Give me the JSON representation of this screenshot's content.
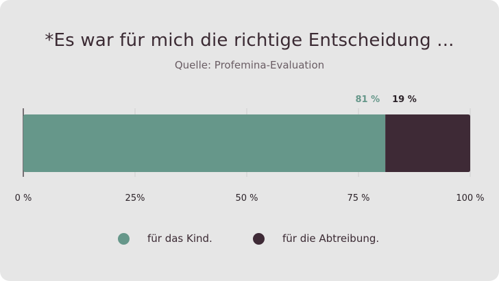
{
  "chart_data": {
    "type": "bar",
    "orientation": "horizontal-stacked",
    "title": "*Es war für mich die richtige Entscheidung ...",
    "subtitle": "Quelle: Profemina-Evaluation",
    "categories": [
      ""
    ],
    "series": [
      {
        "name": "für das Kind.",
        "values": [
          81
        ],
        "label": "81 %",
        "color": "#66978a"
      },
      {
        "name": "für die Abtreibung.",
        "values": [
          19
        ],
        "label": "19 %",
        "color": "#3e2a36"
      }
    ],
    "xlim": [
      0,
      100
    ],
    "ticks": [
      {
        "value": 0,
        "label": "0 %"
      },
      {
        "value": 25,
        "label": "25%"
      },
      {
        "value": 50,
        "label": "50 %"
      },
      {
        "value": 75,
        "label": "75 %"
      },
      {
        "value": 100,
        "label": "100 %"
      }
    ],
    "grid": true,
    "legend_position": "bottom"
  },
  "colors": {
    "background": "#e6e6e6",
    "label_green": "#66978a",
    "label_dark": "#2b2228"
  }
}
